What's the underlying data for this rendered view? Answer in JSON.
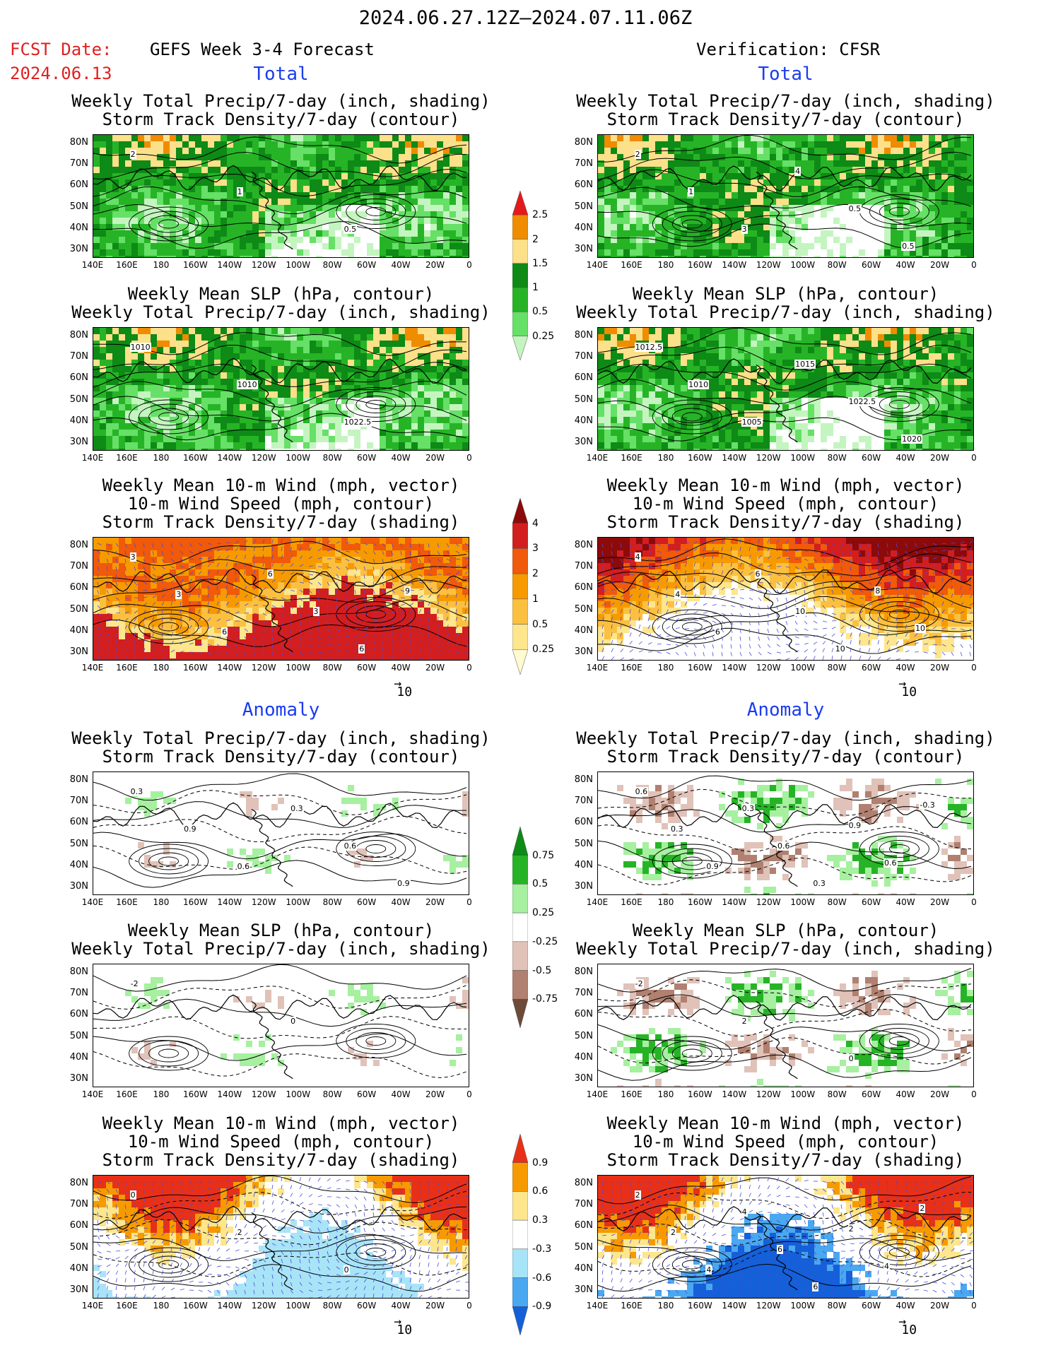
{
  "header": {
    "main_title": "2024.06.27.12Z–2024.07.11.06Z",
    "fcst_label": "FCST Date:",
    "fcst_date": "2024.06.13",
    "left_model": "GEFS Week 3-4 Forecast",
    "right_model": "Verification: CFSR"
  },
  "sections": {
    "total": "Total",
    "anomaly": "Anomaly"
  },
  "titles": {
    "precip_storm_1": "Weekly Total Precip/7-day (inch, shading)",
    "precip_storm_2": "Storm Track Density/7-day (contour)",
    "slp_1": "Weekly Mean SLP (hPa, contour)",
    "slp_2": "Weekly Total Precip/7-day (inch, shading)",
    "wind_1": "Weekly Mean 10-m Wind (mph, vector)",
    "wind_2": "10-m Wind Speed (mph, contour)",
    "wind_3": "Storm Track Density/7-day (shading)"
  },
  "axes": {
    "lat_ticks": [
      "80N",
      "70N",
      "60N",
      "50N",
      "40N",
      "30N"
    ],
    "lon_ticks": [
      "140E",
      "160E",
      "180",
      "160W",
      "140W",
      "120W",
      "100W",
      "80W",
      "60W",
      "40W",
      "20W",
      "0"
    ]
  },
  "vector_ref": "10",
  "colorbars": {
    "precip_total": {
      "labels": [
        "2.5",
        "2",
        "1.5",
        "1",
        "0.5",
        "0.25"
      ],
      "colors": [
        "#e31a1c",
        "#f08c00",
        "#fde08a",
        "#0e8a16",
        "#26b426",
        "#66e066",
        "#c4f5c0"
      ]
    },
    "storm_total": {
      "labels": [
        "4",
        "3",
        "2",
        "1",
        "0.5",
        "0.25"
      ],
      "colors": [
        "#8c0a0a",
        "#d21e1e",
        "#f05a0a",
        "#f79a00",
        "#fcc040",
        "#fde68c",
        "#fffad0"
      ]
    },
    "precip_anom": {
      "labels": [
        "0.75",
        "0.5",
        "0.25",
        "-0.25",
        "-0.5",
        "-0.75"
      ],
      "colors": [
        "#0e8a16",
        "#26b426",
        "#a6f0a0",
        "#ffffff",
        "#e0c2b8",
        "#b08070",
        "#6e4a3a"
      ]
    },
    "storm_anom": {
      "labels": [
        "0.9",
        "0.6",
        "0.3",
        "-0.3",
        "-0.6",
        "-0.9"
      ],
      "colors": [
        "#e83018",
        "#f79a00",
        "#fde68c",
        "#ffffff",
        "#a8e4f8",
        "#4aa8f0",
        "#1460d8"
      ]
    }
  },
  "contour_labels": {
    "p1": [
      "2",
      "1",
      "0.5"
    ],
    "p2": [
      "2",
      "1",
      "3",
      "4",
      "0.5",
      "0.5"
    ],
    "p3": [
      "1010",
      "1010",
      "1022.5"
    ],
    "p4": [
      "1012.5",
      "1010",
      "1005",
      "1015",
      "1022.5",
      "1020"
    ],
    "p5": [
      "3",
      "3",
      "6",
      "6",
      "3",
      "6",
      "9"
    ],
    "p6": [
      "4",
      "4",
      "6",
      "6",
      "10",
      "10",
      "8",
      "10"
    ],
    "p7": [
      "0.3",
      "0.9",
      "0.6",
      "0.3",
      "0.6",
      "0.9"
    ],
    "p8": [
      "0.6",
      "0.3",
      "0.9",
      "0.3",
      "0.6",
      "0.3",
      "0.9",
      "0.6",
      "-0.3"
    ],
    "p9": [
      "-2",
      "0"
    ],
    "p10": [
      "-2",
      "2",
      "0"
    ],
    "p11": [
      "0",
      "2",
      "0"
    ],
    "p12": [
      "2",
      "2",
      "4",
      "4",
      "6",
      "6",
      "2",
      "4",
      "2"
    ]
  },
  "chart_data": [
    {
      "id": "gefs-total-precip-storm",
      "type": "heatmap",
      "xlim": [
        "140E",
        "0"
      ],
      "ylim": [
        "25N",
        "85N"
      ],
      "shading": "Weekly Total Precip/7-day (inch)",
      "contour": "Storm Track Density/7-day"
    },
    {
      "id": "cfsr-total-precip-storm",
      "type": "heatmap",
      "xlim": [
        "140E",
        "0"
      ],
      "ylim": [
        "25N",
        "85N"
      ],
      "shading": "Weekly Total Precip/7-day (inch)",
      "contour": "Storm Track Density/7-day"
    },
    {
      "id": "gefs-total-slp-precip",
      "type": "heatmap",
      "xlim": [
        "140E",
        "0"
      ],
      "ylim": [
        "25N",
        "85N"
      ],
      "shading": "Weekly Total Precip/7-day (inch)",
      "contour": "Weekly Mean SLP (hPa)"
    },
    {
      "id": "cfsr-total-slp-precip",
      "type": "heatmap",
      "xlim": [
        "140E",
        "0"
      ],
      "ylim": [
        "25N",
        "85N"
      ],
      "shading": "Weekly Total Precip/7-day (inch)",
      "contour": "Weekly Mean SLP (hPa)"
    },
    {
      "id": "gefs-total-wind-storm",
      "type": "heatmap",
      "xlim": [
        "140E",
        "0"
      ],
      "ylim": [
        "25N",
        "85N"
      ],
      "shading": "Storm Track Density/7-day",
      "contour": "10-m Wind Speed (mph)",
      "vector": "Weekly Mean 10-m Wind (mph)"
    },
    {
      "id": "cfsr-total-wind-storm",
      "type": "heatmap",
      "xlim": [
        "140E",
        "0"
      ],
      "ylim": [
        "25N",
        "85N"
      ],
      "shading": "Storm Track Density/7-day",
      "contour": "10-m Wind Speed (mph)",
      "vector": "Weekly Mean 10-m Wind (mph)"
    },
    {
      "id": "gefs-anom-precip-storm",
      "type": "heatmap",
      "xlim": [
        "140E",
        "0"
      ],
      "ylim": [
        "25N",
        "85N"
      ]
    },
    {
      "id": "cfsr-anom-precip-storm",
      "type": "heatmap",
      "xlim": [
        "140E",
        "0"
      ],
      "ylim": [
        "25N",
        "85N"
      ]
    },
    {
      "id": "gefs-anom-slp-precip",
      "type": "heatmap",
      "xlim": [
        "140E",
        "0"
      ],
      "ylim": [
        "25N",
        "85N"
      ]
    },
    {
      "id": "cfsr-anom-slp-precip",
      "type": "heatmap",
      "xlim": [
        "140E",
        "0"
      ],
      "ylim": [
        "25N",
        "85N"
      ]
    },
    {
      "id": "gefs-anom-wind-storm",
      "type": "heatmap",
      "xlim": [
        "140E",
        "0"
      ],
      "ylim": [
        "25N",
        "85N"
      ]
    },
    {
      "id": "cfsr-anom-wind-storm",
      "type": "heatmap",
      "xlim": [
        "140E",
        "0"
      ],
      "ylim": [
        "25N",
        "85N"
      ]
    }
  ]
}
